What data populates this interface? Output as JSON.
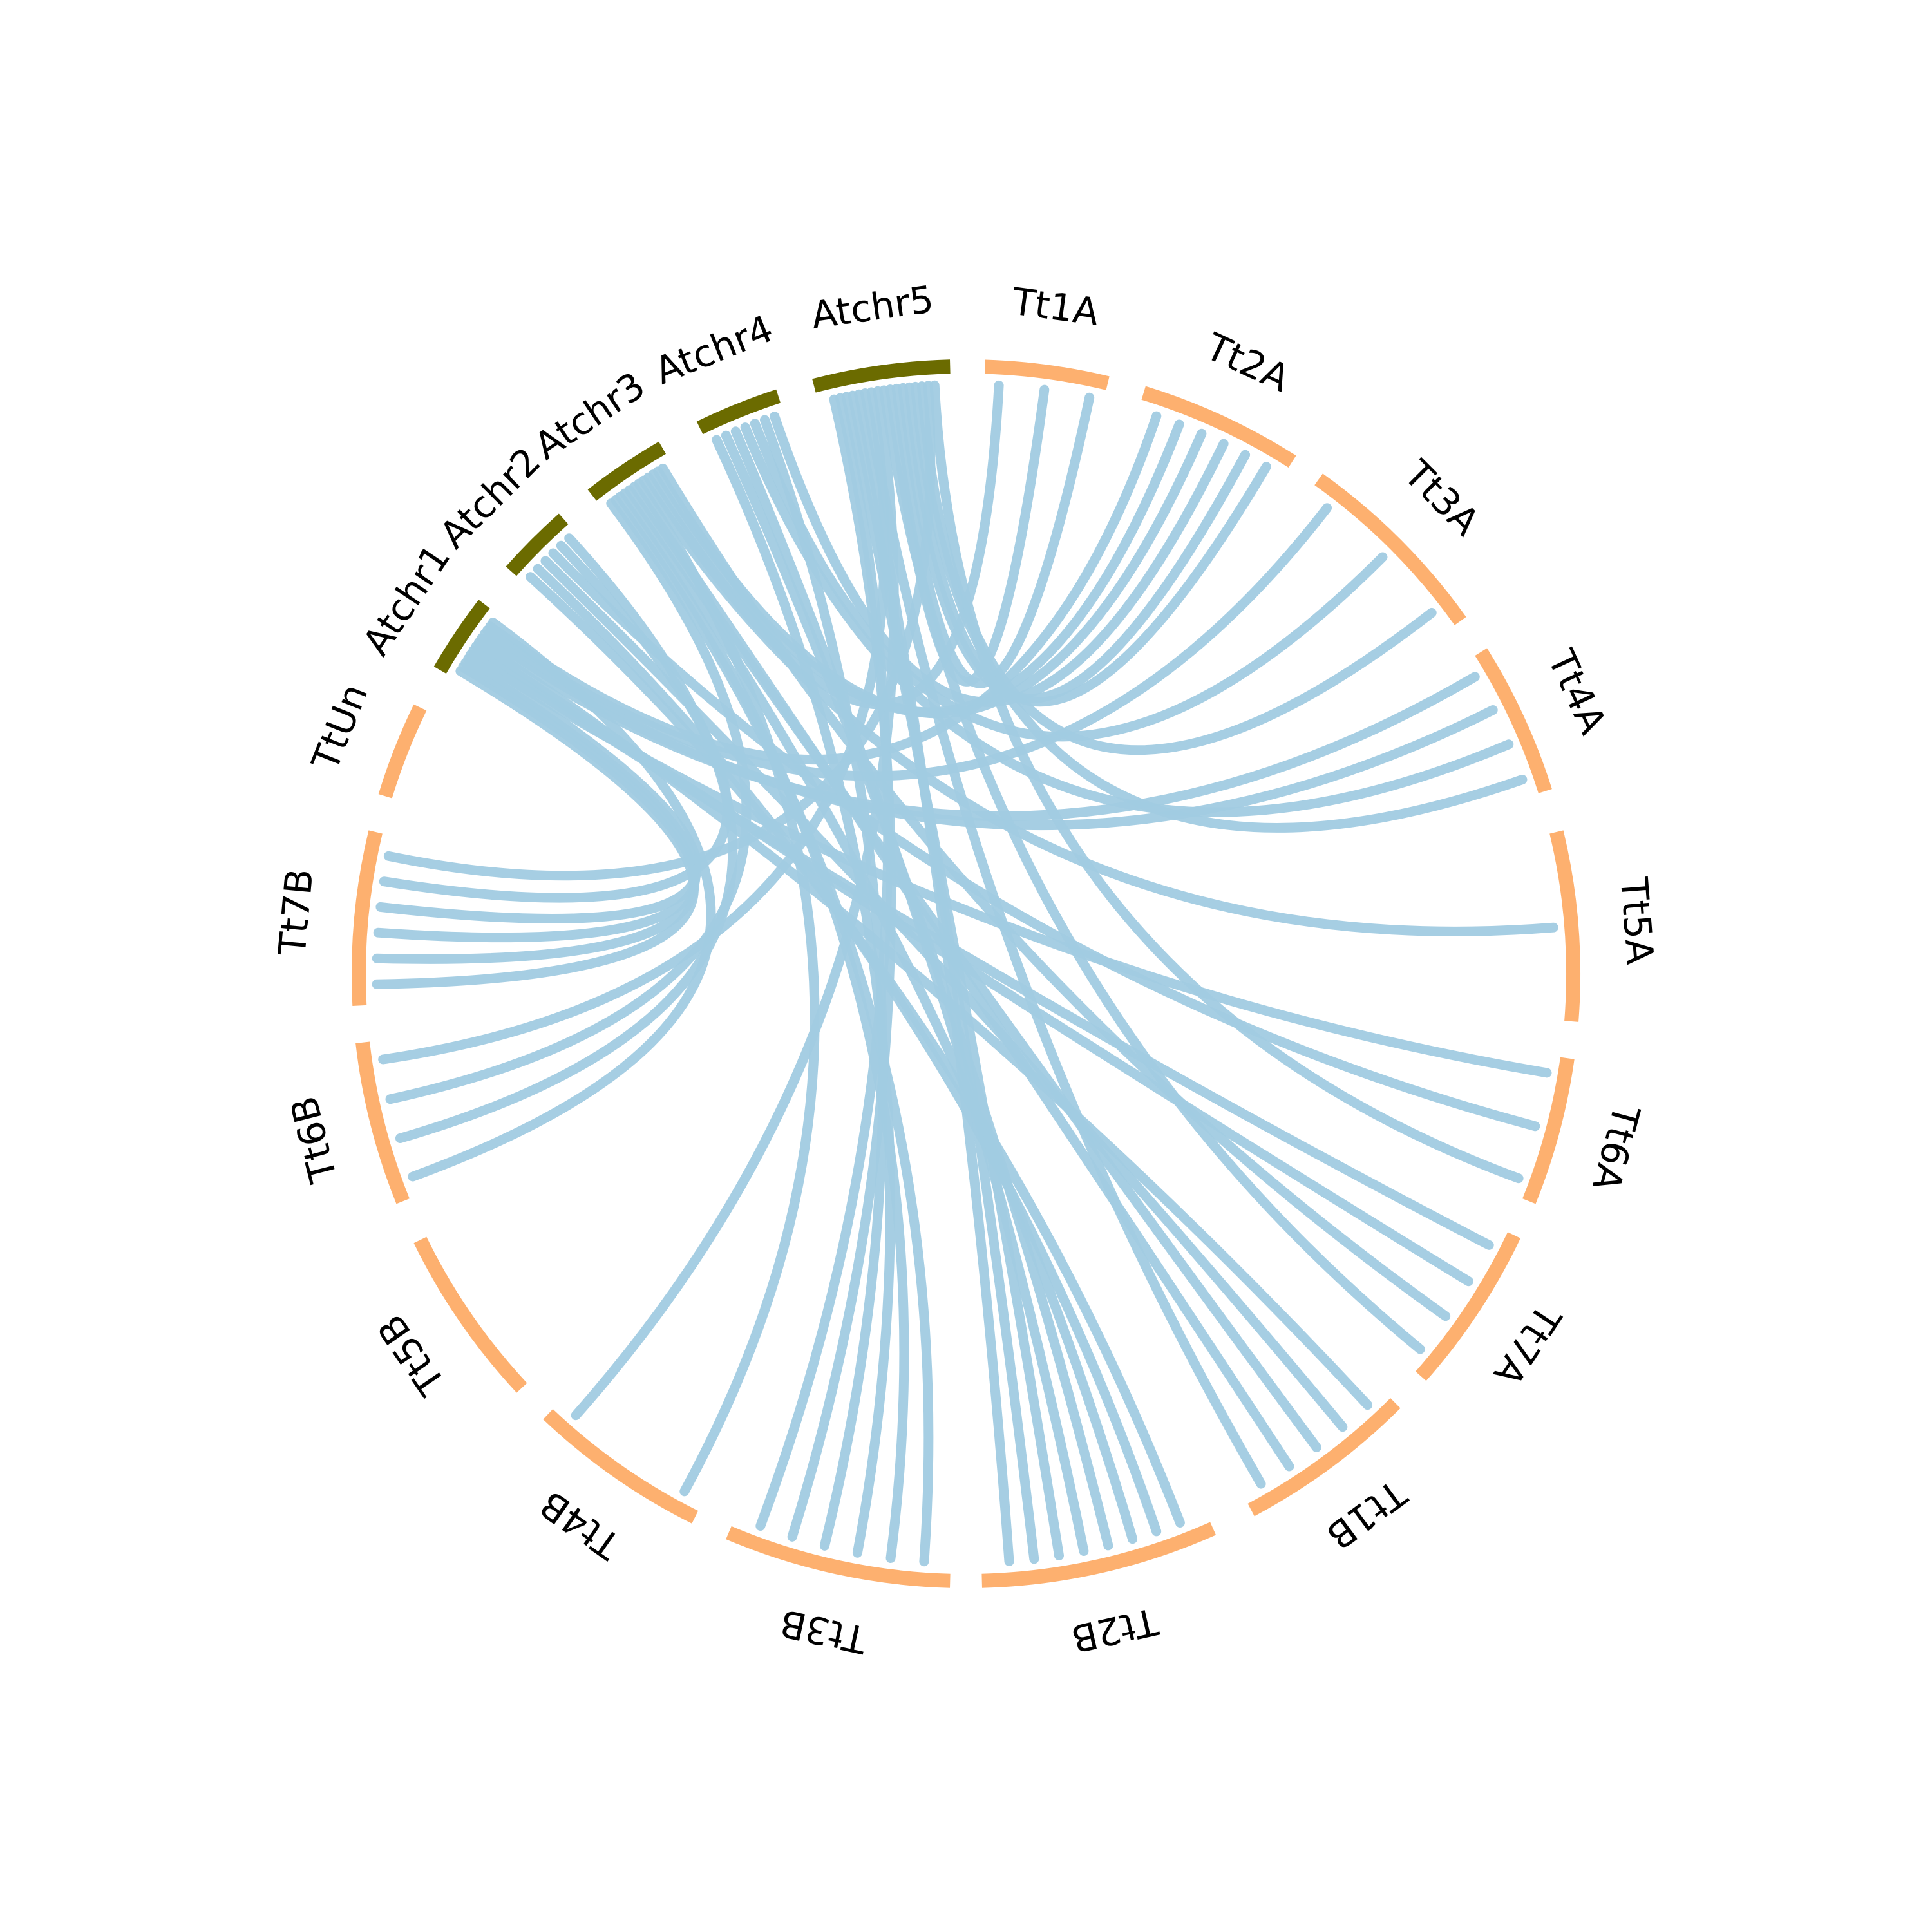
{
  "colors": {
    "background": "#ffffff",
    "arabidopsis": "#6b6b00",
    "wheat": "#fdb06f",
    "link": "#a1cbe2",
    "label": "#000000"
  },
  "segments": [
    {
      "id": "Tt1A",
      "label": "Tt1A",
      "group": "wheat"
    },
    {
      "id": "Tt2A",
      "label": "Tt2A",
      "group": "wheat"
    },
    {
      "id": "Tt3A",
      "label": "Tt3A",
      "group": "wheat"
    },
    {
      "id": "Tt4A",
      "label": "Tt4A",
      "group": "wheat"
    },
    {
      "id": "Tt5A",
      "label": "Tt5A",
      "group": "wheat"
    },
    {
      "id": "Tt6A",
      "label": "Tt6A",
      "group": "wheat"
    },
    {
      "id": "Tt7A",
      "label": "Tt7A",
      "group": "wheat"
    },
    {
      "id": "Tt1B",
      "label": "Tt1B",
      "group": "wheat"
    },
    {
      "id": "Tt2B",
      "label": "Tt2B",
      "group": "wheat"
    },
    {
      "id": "Tt3B",
      "label": "Tt3B",
      "group": "wheat"
    },
    {
      "id": "Tt4B",
      "label": "Tt4B",
      "group": "wheat"
    },
    {
      "id": "Tt5B",
      "label": "Tt5B",
      "group": "wheat"
    },
    {
      "id": "Tt6B",
      "label": "Tt6B",
      "group": "wheat"
    },
    {
      "id": "Tt7B",
      "label": "Tt7B",
      "group": "wheat"
    },
    {
      "id": "TtUn",
      "label": "TtUn",
      "group": "wheat"
    },
    {
      "id": "Atchr1",
      "label": "Atchr1",
      "group": "arabidopsis"
    },
    {
      "id": "Atchr2",
      "label": "Atchr2",
      "group": "arabidopsis"
    },
    {
      "id": "Atchr3",
      "label": "Atchr3",
      "group": "arabidopsis"
    },
    {
      "id": "Atchr4",
      "label": "Atchr4",
      "group": "arabidopsis"
    },
    {
      "id": "Atchr5",
      "label": "Atchr5",
      "group": "arabidopsis"
    }
  ],
  "links": [
    {
      "source": "Atchr1",
      "target": "Tt7B"
    },
    {
      "source": "Atchr1",
      "target": "Tt7B"
    },
    {
      "source": "Atchr1",
      "target": "Tt7B"
    },
    {
      "source": "Atchr1",
      "target": "Tt7B"
    },
    {
      "source": "Atchr1",
      "target": "Tt6A"
    },
    {
      "source": "Atchr1",
      "target": "Tt7A"
    },
    {
      "source": "Atchr1",
      "target": "Tt7A"
    },
    {
      "source": "Atchr1",
      "target": "Tt1B"
    },
    {
      "source": "Atchr1",
      "target": "Tt4A"
    },
    {
      "source": "Atchr1",
      "target": "Tt4A"
    },
    {
      "source": "Atchr1",
      "target": "Tt3A"
    },
    {
      "source": "Atchr1",
      "target": "Tt2A"
    },
    {
      "source": "Atchr1",
      "target": "Tt6B"
    },
    {
      "source": "Atchr2",
      "target": "Tt2B"
    },
    {
      "source": "Atchr2",
      "target": "Tt2B"
    },
    {
      "source": "Atchr2",
      "target": "Tt1B"
    },
    {
      "source": "Atchr2",
      "target": "Tt6A"
    },
    {
      "source": "Atchr2",
      "target": "Tt7B"
    },
    {
      "source": "Atchr2",
      "target": "Tt6B"
    },
    {
      "source": "Atchr3",
      "target": "Tt6B"
    },
    {
      "source": "Atchr3",
      "target": "Tt3B"
    },
    {
      "source": "Atchr3",
      "target": "Tt3B"
    },
    {
      "source": "Atchr3",
      "target": "Tt2B"
    },
    {
      "source": "Atchr3",
      "target": "Tt1B"
    },
    {
      "source": "Atchr3",
      "target": "Tt1B"
    },
    {
      "source": "Atchr3",
      "target": "Tt4B"
    },
    {
      "source": "Atchr3",
      "target": "Tt5A"
    },
    {
      "source": "Atchr3",
      "target": "Tt1A"
    },
    {
      "source": "Atchr3",
      "target": "Tt2A"
    },
    {
      "source": "Atchr3",
      "target": "Tt2A"
    },
    {
      "source": "Atchr3",
      "target": "Tt7A"
    },
    {
      "source": "Atchr4",
      "target": "Tt3B"
    },
    {
      "source": "Atchr4",
      "target": "Tt2B"
    },
    {
      "source": "Atchr4",
      "target": "Tt2B"
    },
    {
      "source": "Atchr4",
      "target": "Tt4A"
    },
    {
      "source": "Atchr4",
      "target": "Tt3A"
    },
    {
      "source": "Atchr4",
      "target": "Tt3B"
    },
    {
      "source": "Atchr4",
      "target": "Tt2A"
    },
    {
      "source": "Atchr5",
      "target": "Tt3B"
    },
    {
      "source": "Atchr5",
      "target": "Tt3B"
    },
    {
      "source": "Atchr5",
      "target": "Tt2B"
    },
    {
      "source": "Atchr5",
      "target": "Tt2B"
    },
    {
      "source": "Atchr5",
      "target": "Tt2B"
    },
    {
      "source": "Atchr5",
      "target": "Tt1B"
    },
    {
      "source": "Atchr5",
      "target": "Tt6B"
    },
    {
      "source": "Atchr5",
      "target": "Tt4B"
    },
    {
      "source": "Atchr5",
      "target": "Tt7A"
    },
    {
      "source": "Atchr5",
      "target": "Tt1A"
    },
    {
      "source": "Atchr5",
      "target": "Tt1A"
    },
    {
      "source": "Atchr5",
      "target": "Tt2A"
    },
    {
      "source": "Atchr5",
      "target": "Tt2A"
    },
    {
      "source": "Atchr5",
      "target": "Tt4A"
    },
    {
      "source": "Atchr5",
      "target": "Tt3A"
    },
    {
      "source": "Atchr5",
      "target": "Tt7B"
    },
    {
      "source": "Atchr5",
      "target": "Tt6A"
    }
  ]
}
